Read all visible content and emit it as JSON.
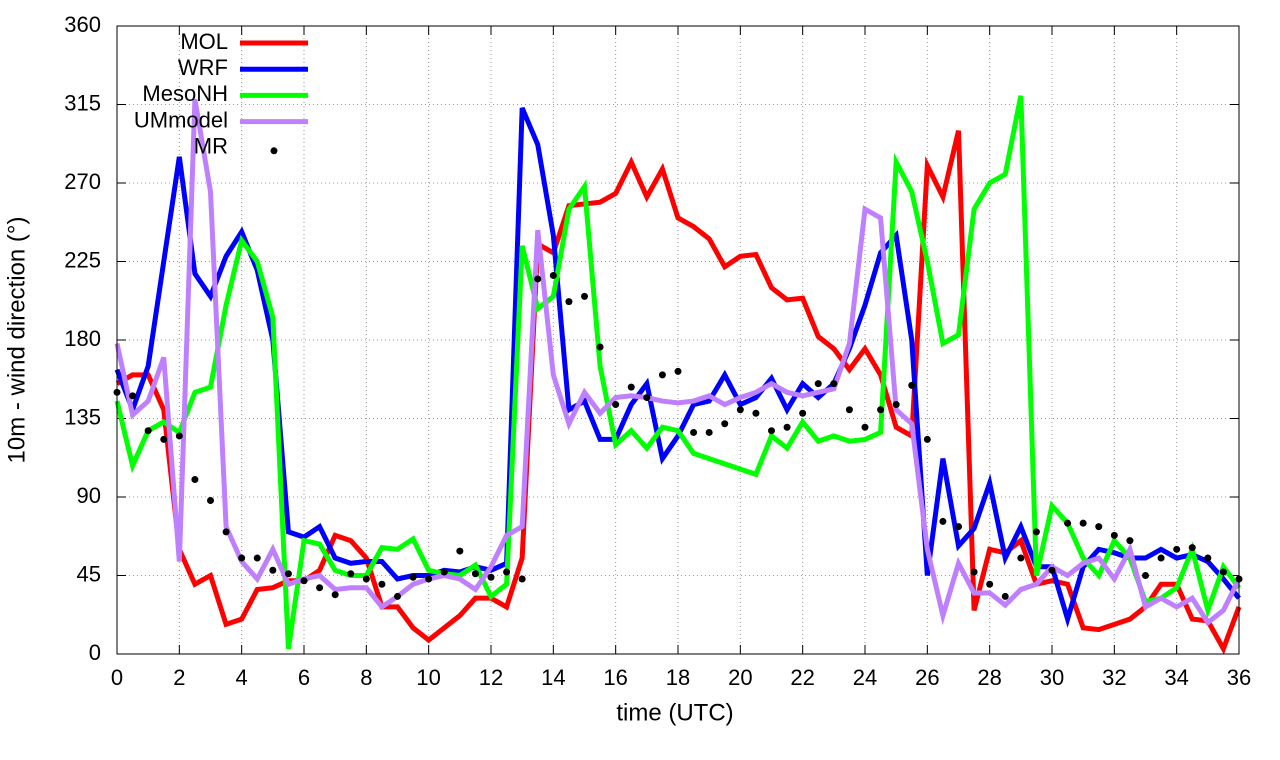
{
  "chart_data": {
    "type": "line",
    "xlabel": "time (UTC)",
    "ylabel": "10m - wind direction (°)",
    "xlim": [
      0,
      36
    ],
    "ylim": [
      0,
      360
    ],
    "xticks": [
      0,
      2,
      4,
      6,
      8,
      10,
      12,
      14,
      16,
      18,
      20,
      22,
      24,
      26,
      28,
      30,
      32,
      34,
      36
    ],
    "yticks": [
      0,
      45,
      90,
      135,
      180,
      225,
      270,
      315,
      360
    ],
    "grid": true,
    "legend": "top-left",
    "x": [
      0,
      0.5,
      1,
      1.5,
      2,
      2.5,
      3,
      3.5,
      4,
      4.5,
      5,
      5.5,
      6,
      6.5,
      7,
      7.5,
      8,
      8.5,
      9,
      9.5,
      10,
      10.5,
      11,
      11.5,
      12,
      12.5,
      13,
      13.5,
      14,
      14.5,
      15,
      15.5,
      16,
      16.5,
      17,
      17.5,
      18,
      18.5,
      19,
      19.5,
      20,
      20.5,
      21,
      21.5,
      22,
      22.5,
      23,
      23.5,
      24,
      24.5,
      25,
      25.5,
      26,
      26.5,
      27,
      27.5,
      28,
      28.5,
      29,
      29.5,
      30,
      30.5,
      31,
      31.5,
      32,
      32.5,
      33,
      33.5,
      34,
      34.5,
      35,
      35.5,
      36
    ],
    "series": [
      {
        "name": "MOL",
        "color": "#ff0000",
        "style": "lines",
        "values": [
          155,
          160,
          160,
          140,
          60,
          40,
          45,
          17,
          20,
          37,
          38,
          42,
          42,
          48,
          68,
          65,
          55,
          27,
          27,
          15,
          8,
          15,
          22,
          32,
          32,
          27,
          55,
          235,
          230,
          257,
          258,
          259,
          264,
          282,
          262,
          278,
          250,
          245,
          238,
          222,
          228,
          229,
          210,
          203,
          204,
          182,
          175,
          163,
          175,
          160,
          130,
          125,
          280,
          262,
          300,
          25,
          60,
          58,
          65,
          40,
          42,
          40,
          15,
          14,
          17,
          20,
          27,
          40,
          40,
          20,
          19,
          3,
          27
        ]
      },
      {
        "name": "WRF",
        "color": "#0000ff",
        "style": "lines",
        "values": [
          163,
          140,
          165,
          225,
          285,
          218,
          205,
          228,
          242,
          220,
          180,
          70,
          67,
          73,
          55,
          52,
          53,
          53,
          43,
          45,
          45,
          48,
          47,
          50,
          48,
          52,
          313,
          292,
          240,
          140,
          145,
          123,
          123,
          143,
          155,
          112,
          125,
          143,
          145,
          160,
          143,
          147,
          158,
          140,
          155,
          147,
          155,
          175,
          200,
          230,
          240,
          180,
          45,
          112,
          62,
          72,
          98,
          55,
          73,
          50,
          50,
          20,
          50,
          60,
          58,
          55,
          55,
          60,
          55,
          57,
          53,
          43,
          32
        ]
      },
      {
        "name": "MesoNH",
        "color": "#00ff00",
        "style": "lines",
        "values": [
          145,
          108,
          128,
          133,
          127,
          150,
          153,
          200,
          237,
          225,
          193,
          3,
          65,
          63,
          48,
          45,
          45,
          61,
          60,
          66,
          48,
          46,
          45,
          51,
          33,
          40,
          234,
          198,
          205,
          255,
          268,
          165,
          120,
          128,
          118,
          130,
          128,
          115,
          112,
          109,
          106,
          103,
          125,
          118,
          133,
          122,
          125,
          122,
          123,
          127,
          282,
          265,
          225,
          178,
          183,
          255,
          270,
          275,
          320,
          45,
          85,
          75,
          55,
          45,
          65,
          55,
          30,
          32,
          38,
          60,
          25,
          50,
          38
        ]
      },
      {
        "name": "UMmodel",
        "color": "#bf80ff",
        "style": "lines",
        "values": [
          178,
          137,
          145,
          170,
          53,
          318,
          265,
          73,
          53,
          43,
          60,
          40,
          43,
          45,
          37,
          38,
          38,
          27,
          33,
          40,
          43,
          45,
          43,
          37,
          50,
          68,
          73,
          243,
          160,
          132,
          150,
          138,
          147,
          148,
          147,
          145,
          144,
          145,
          148,
          143,
          147,
          150,
          155,
          150,
          148,
          150,
          152,
          178,
          255,
          250,
          140,
          132,
          60,
          22,
          52,
          35,
          35,
          28,
          37,
          40,
          50,
          45,
          52,
          55,
          43,
          60,
          27,
          32,
          27,
          32,
          18,
          25,
          43
        ]
      },
      {
        "name": "MR",
        "color": "#000000",
        "style": "points",
        "values": [
          150,
          148,
          128,
          123,
          125,
          100,
          88,
          70,
          55,
          55,
          48,
          46,
          42,
          38,
          34,
          46,
          43,
          40,
          33,
          44,
          43,
          47,
          59,
          46,
          44,
          47,
          43,
          215,
          217,
          202,
          205,
          176,
          143,
          153,
          147,
          160,
          162,
          127,
          127,
          132,
          140,
          138,
          128,
          130,
          138,
          155,
          155,
          140,
          130,
          140,
          143,
          154,
          123,
          76,
          73,
          47,
          40,
          33,
          55,
          70,
          48,
          75,
          75,
          73,
          68,
          65,
          45,
          55,
          60,
          61,
          55,
          47,
          43
        ]
      }
    ]
  }
}
